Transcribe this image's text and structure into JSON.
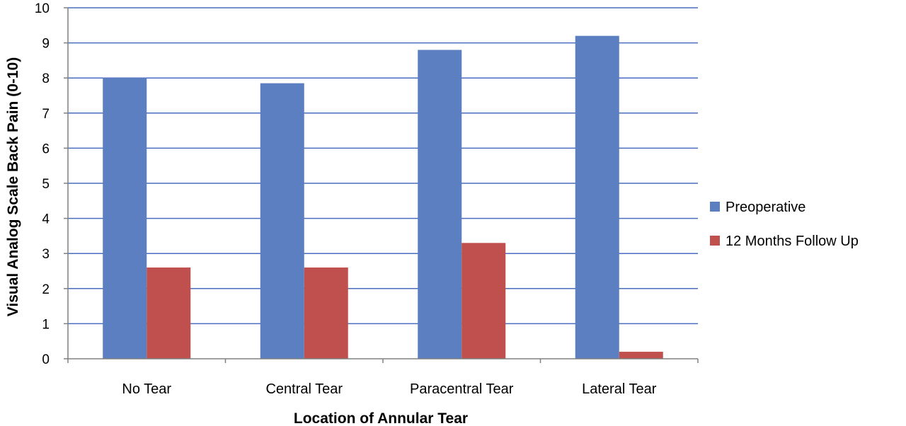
{
  "chart_data": {
    "type": "bar",
    "title": "",
    "xlabel": "Location of Annular Tear",
    "ylabel": "Visual Analog Scale Back Pain (0-10)",
    "ylim": [
      0,
      10
    ],
    "yticks": [
      "0",
      "1",
      "2",
      "3",
      "4",
      "5",
      "6",
      "7",
      "8",
      "9",
      "10"
    ],
    "grid": true,
    "legend_position": "right",
    "categories": [
      "No Tear",
      "Central Tear",
      "Paracentral Tear",
      "Lateral Tear"
    ],
    "series": [
      {
        "name": "Preoperative",
        "color": "#5b7fc0",
        "values": [
          8.0,
          7.85,
          8.8,
          9.2
        ]
      },
      {
        "name": "12 Months Follow Up",
        "color": "#c0504d",
        "values": [
          2.6,
          2.6,
          3.3,
          0.2
        ]
      }
    ]
  }
}
